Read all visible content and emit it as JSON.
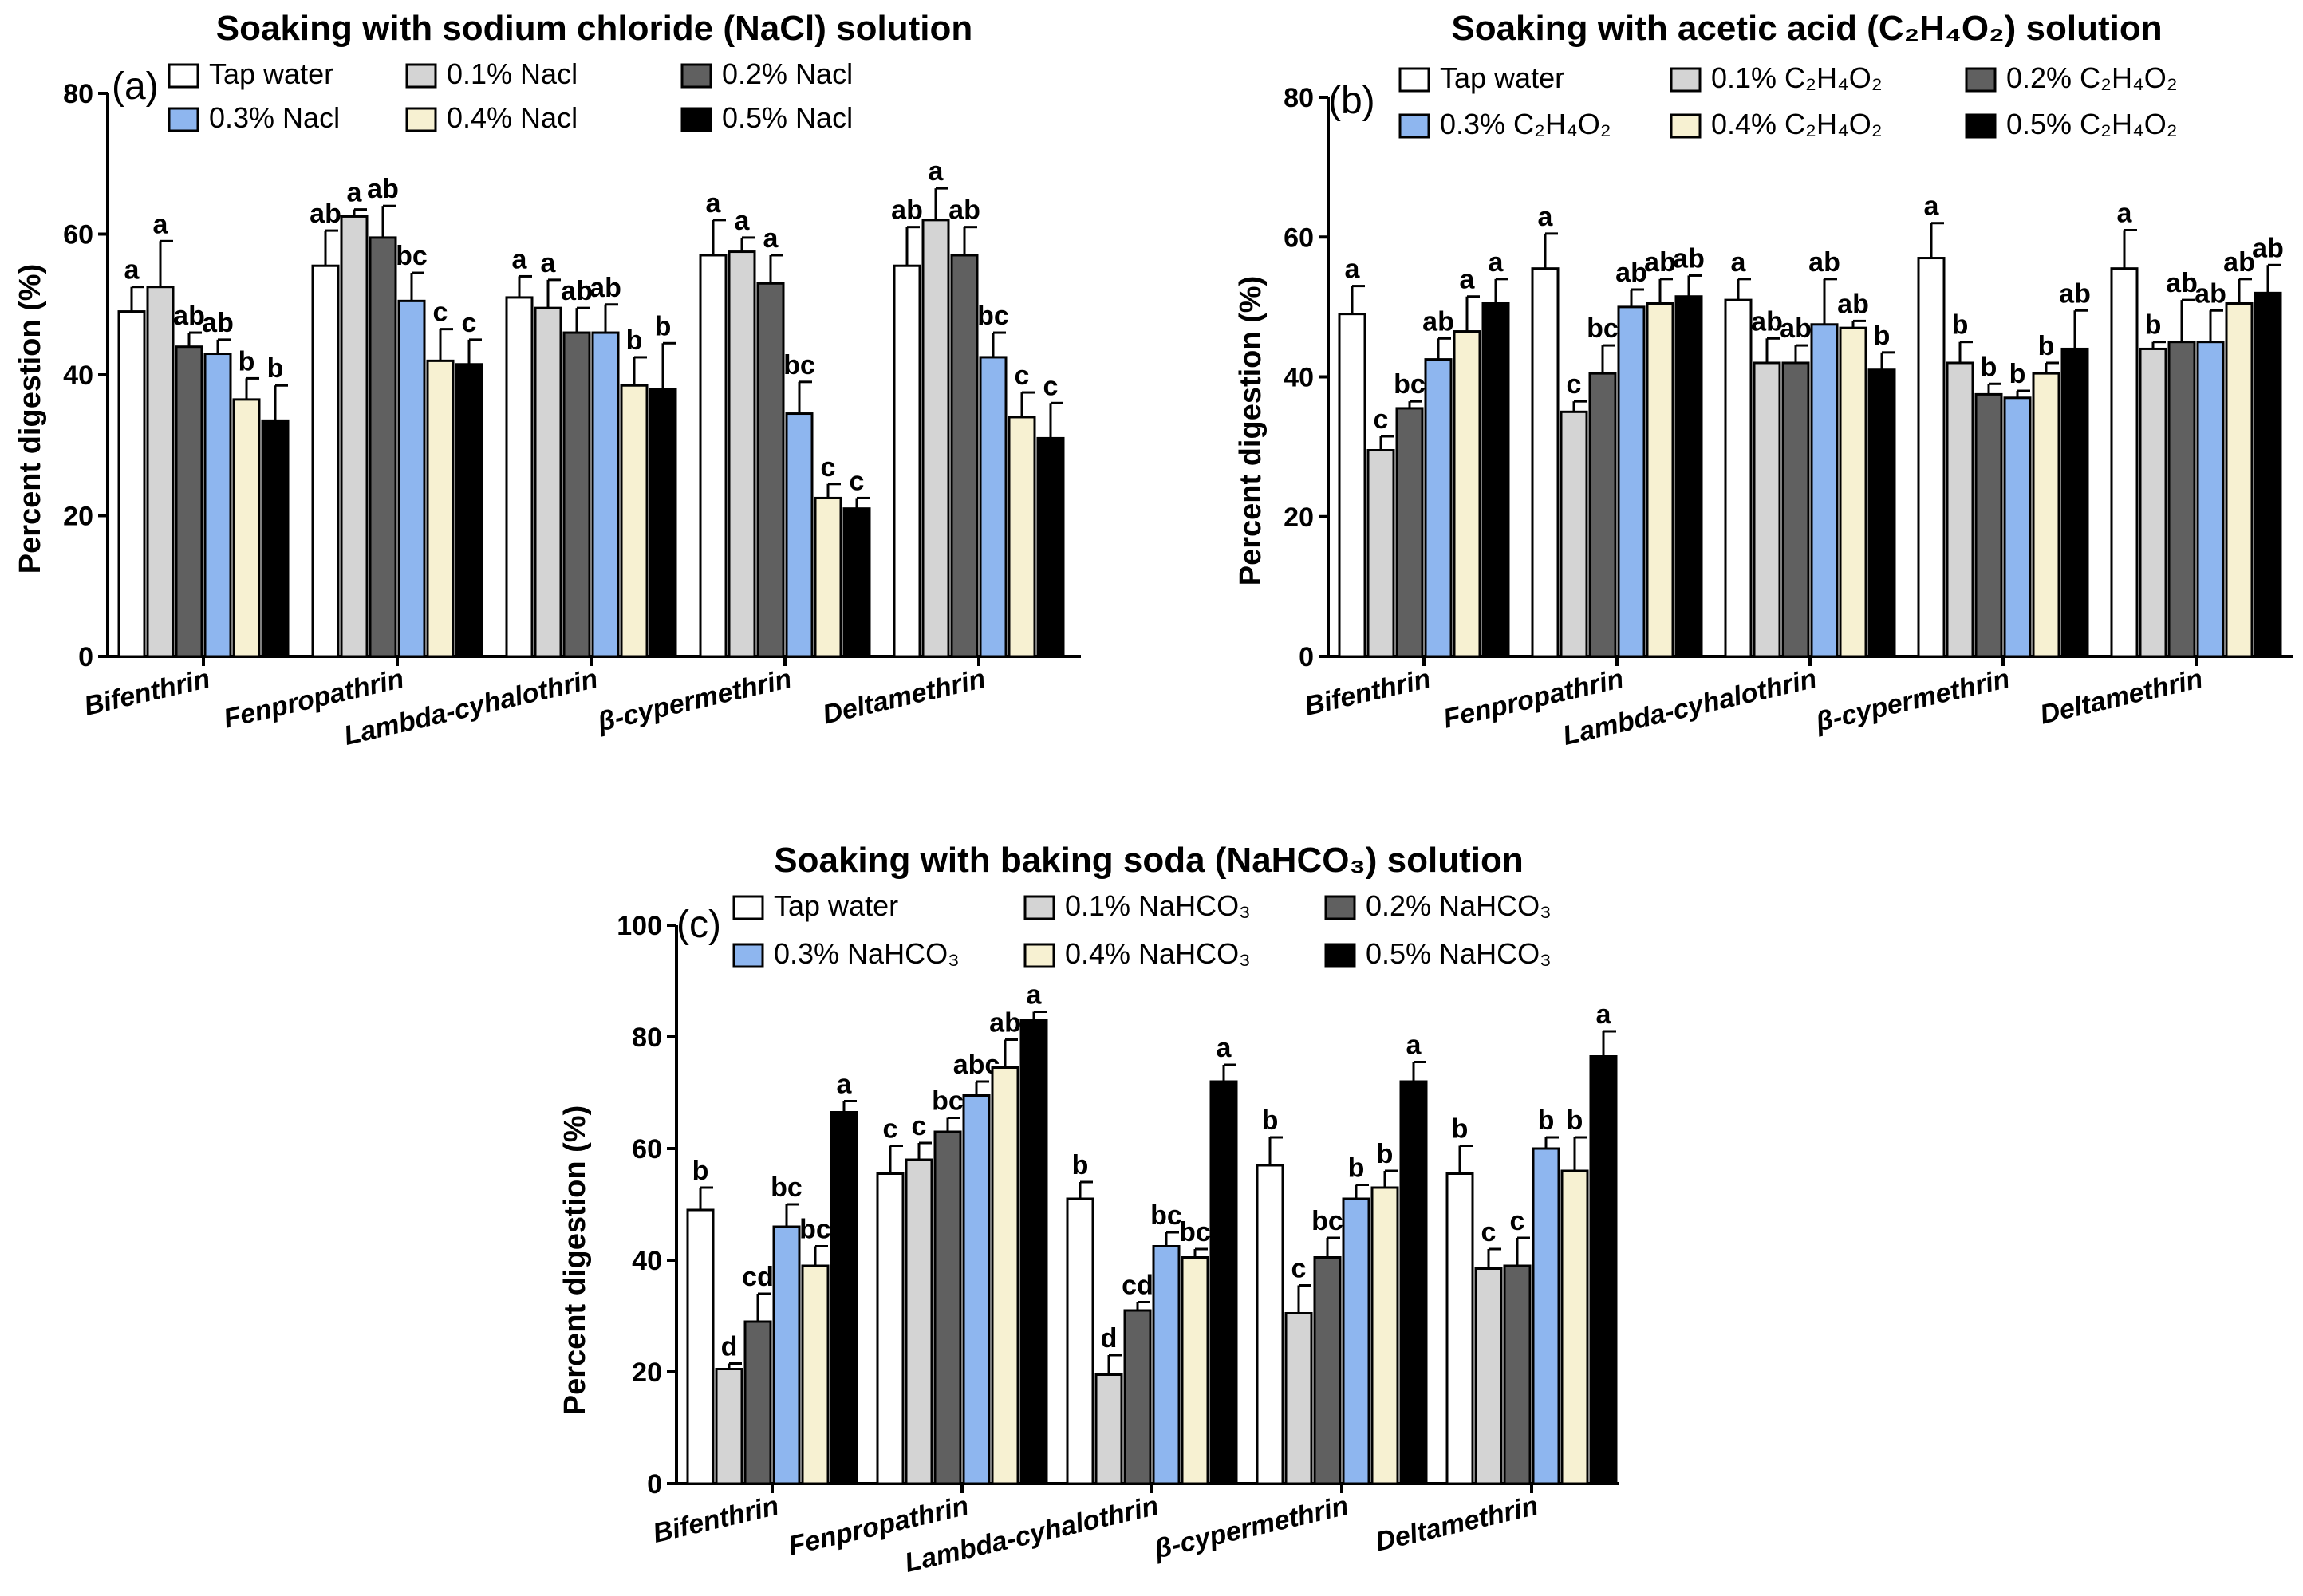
{
  "colors": [
    "#ffffff",
    "#d4d4d4",
    "#606060",
    "#8eb6ef",
    "#f7f1d2",
    "#000000"
  ],
  "chart_data": [
    {
      "type": "bar",
      "panel": "(a)",
      "title": "Soaking with sodium chloride (NaCl) solution",
      "xlabel": "",
      "ylabel": "Percent digestion (%)",
      "ylim": [
        0,
        80
      ],
      "yticks": [
        "0",
        "20",
        "40",
        "60",
        "80"
      ],
      "categories": [
        "Bifenthrin",
        "Fenpropathrin",
        "Lambda-cyhalothrin",
        "β-cypermethrin",
        "Deltamethrin"
      ],
      "series": [
        {
          "name": "Tap water",
          "values": [
            49,
            55.5,
            51,
            57,
            55.5
          ],
          "errors": [
            3.5,
            5,
            3,
            5,
            5.5
          ],
          "letters": [
            "a",
            "ab",
            "a",
            "a",
            "ab"
          ]
        },
        {
          "name": "0.1% Nacl",
          "values": [
            52.5,
            62.5,
            49.5,
            57.5,
            62
          ],
          "errors": [
            6.5,
            1,
            4,
            2,
            4.5
          ],
          "letters": [
            "a",
            "a",
            "a",
            "a",
            "a"
          ]
        },
        {
          "name": "0.2% Nacl",
          "values": [
            44,
            59.5,
            46,
            53,
            57
          ],
          "errors": [
            2,
            4.5,
            3.5,
            4,
            4
          ],
          "letters": [
            "ab",
            "ab",
            "ab",
            "a",
            "ab"
          ]
        },
        {
          "name": "0.3% Nacl",
          "values": [
            43,
            50.5,
            46,
            34.5,
            42.5
          ],
          "errors": [
            2,
            4,
            4,
            4.5,
            3.5
          ],
          "letters": [
            "ab",
            "bc",
            "ab",
            "bc",
            "bc"
          ]
        },
        {
          "name": "0.4% Nacl",
          "values": [
            36.5,
            42,
            38.5,
            22.5,
            34
          ],
          "errors": [
            3,
            4.5,
            4,
            2,
            3.5
          ],
          "letters": [
            "b",
            "c",
            "b",
            "c",
            "c"
          ]
        },
        {
          "name": "0.5% Nacl",
          "values": [
            33.5,
            41.5,
            38,
            21,
            31
          ],
          "errors": [
            5,
            3.5,
            6.5,
            1.5,
            5
          ],
          "letters": [
            "b",
            "c",
            "b",
            "c",
            "c"
          ]
        }
      ]
    },
    {
      "type": "bar",
      "panel": "(b)",
      "title": "Soaking with acetic acid (C₂H₄O₂) solution",
      "xlabel": "",
      "ylabel": "Percent digestion (%)",
      "ylim": [
        0,
        80
      ],
      "yticks": [
        "0",
        "20",
        "40",
        "60",
        "80"
      ],
      "categories": [
        "Bifenthrin",
        "Fenpropathrin",
        "Lambda-cyhalothrin",
        "β-cypermethrin",
        "Deltamethrin"
      ],
      "series": [
        {
          "name": "Tap water",
          "values": [
            49,
            55.5,
            51,
            57,
            55.5
          ],
          "errors": [
            4,
            5,
            3,
            5,
            5.5
          ],
          "letters": [
            "a",
            "a",
            "a",
            "a",
            "a"
          ]
        },
        {
          "name": "0.1% C₂H₄O₂",
          "values": [
            29.5,
            35,
            42,
            42,
            44
          ],
          "errors": [
            2,
            1.5,
            3.5,
            3,
            1
          ],
          "letters": [
            "c",
            "c",
            "ab",
            "b",
            "b"
          ]
        },
        {
          "name": "0.2% C₂H₄O₂",
          "values": [
            35.5,
            40.5,
            42,
            37.5,
            45
          ],
          "errors": [
            1,
            4,
            2.5,
            1.5,
            6
          ],
          "letters": [
            "bc",
            "bc",
            "ab",
            "b",
            "ab"
          ]
        },
        {
          "name": "0.3% C₂H₄O₂",
          "values": [
            42.5,
            50,
            47.5,
            37,
            45
          ],
          "errors": [
            3,
            2.5,
            6.5,
            1,
            4.5
          ],
          "letters": [
            "ab",
            "ab",
            "ab",
            "b",
            "ab"
          ]
        },
        {
          "name": "0.4% C₂H₄O₂",
          "values": [
            46.5,
            50.5,
            47,
            40.5,
            50.5
          ],
          "errors": [
            5,
            3.5,
            1,
            1.5,
            3.5
          ],
          "letters": [
            "a",
            "ab",
            "ab",
            "b",
            "ab"
          ]
        },
        {
          "name": "0.5% C₂H₄O₂",
          "values": [
            50.5,
            51.5,
            41,
            44,
            52
          ],
          "errors": [
            3.5,
            3,
            2.5,
            5.5,
            4
          ],
          "letters": [
            "a",
            "ab",
            "b",
            "ab",
            "ab"
          ]
        }
      ]
    },
    {
      "type": "bar",
      "panel": "(c)",
      "title": "Soaking with baking soda (NaHCO₃) solution",
      "xlabel": "",
      "ylabel": "Percent digestion (%)",
      "ylim": [
        0,
        100
      ],
      "yticks": [
        "0",
        "20",
        "40",
        "60",
        "80",
        "100"
      ],
      "categories": [
        "Bifenthrin",
        "Fenpropathrin",
        "Lambda-cyhalothrin",
        "β-cypermethrin",
        "Deltamethrin"
      ],
      "series": [
        {
          "name": "Tap water",
          "values": [
            49,
            55.5,
            51,
            57,
            55.5
          ],
          "errors": [
            4,
            5,
            3,
            5,
            5
          ],
          "letters": [
            "b",
            "c",
            "b",
            "b",
            "b"
          ]
        },
        {
          "name": "0.1% NaHCO₃",
          "values": [
            20.5,
            58,
            19.5,
            30.5,
            38.5
          ],
          "errors": [
            1,
            3,
            3.5,
            5,
            3.5
          ],
          "letters": [
            "d",
            "c",
            "d",
            "c",
            "c"
          ]
        },
        {
          "name": "0.2% NaHCO₃",
          "values": [
            29,
            63,
            31,
            40.5,
            39
          ],
          "errors": [
            5,
            2.5,
            1.5,
            3.5,
            5
          ],
          "letters": [
            "cd",
            "bc",
            "cd",
            "bc",
            "c"
          ]
        },
        {
          "name": "0.3% NaHCO₃",
          "values": [
            46,
            69.5,
            42.5,
            51,
            60
          ],
          "errors": [
            4,
            2.5,
            2.5,
            2.5,
            2
          ],
          "letters": [
            "bc",
            "abc",
            "bc",
            "b",
            "b"
          ]
        },
        {
          "name": "0.4% NaHCO₃",
          "values": [
            39,
            74.5,
            40.5,
            53,
            56
          ],
          "errors": [
            3.5,
            5,
            1.5,
            3,
            6
          ],
          "letters": [
            "bc",
            "ab",
            "bc",
            "b",
            "b"
          ]
        },
        {
          "name": "0.5% NaHCO₃",
          "values": [
            66.5,
            83,
            72,
            72,
            76.5
          ],
          "errors": [
            2,
            1.5,
            3,
            3.5,
            4.5
          ],
          "letters": [
            "a",
            "a",
            "a",
            "a",
            "a"
          ]
        }
      ]
    }
  ]
}
